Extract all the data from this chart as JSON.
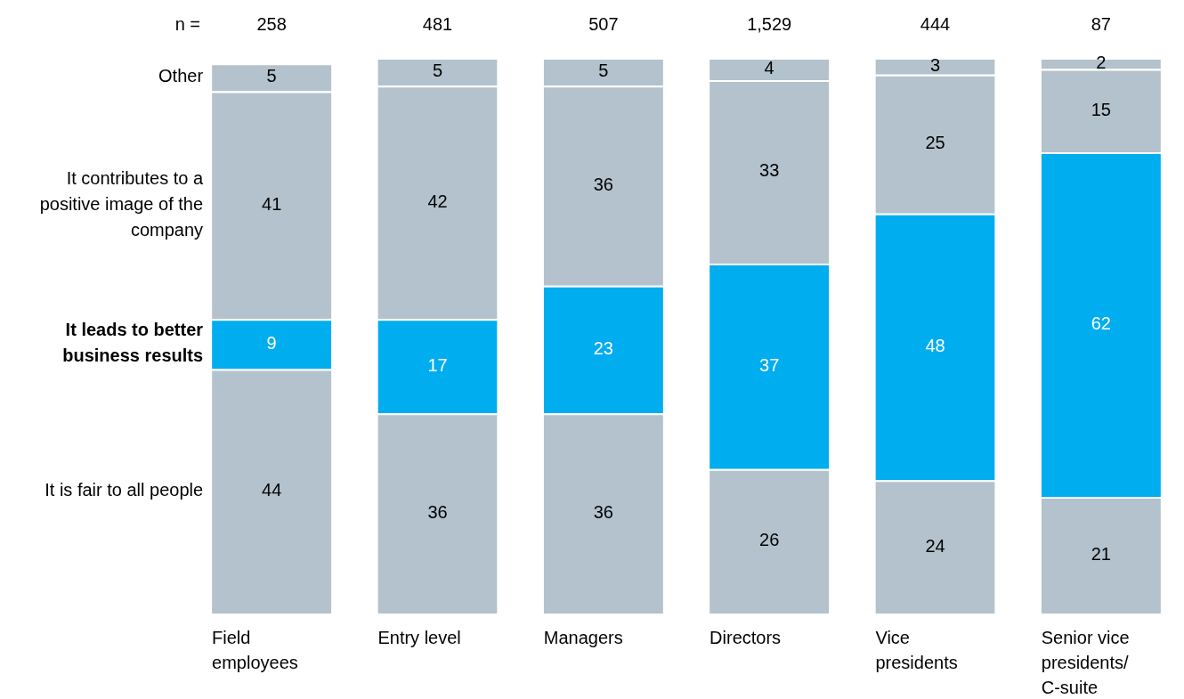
{
  "chart_data": {
    "type": "bar",
    "stacked": true,
    "data_labels": true,
    "legend": false,
    "grid": false,
    "ylim": [
      0,
      100
    ],
    "categories": [
      "Field employees",
      "Entry level",
      "Managers",
      "Directors",
      "Vice presidents",
      "Senior vice presidents/ C-suite"
    ],
    "annotations": [
      "n =",
      "258",
      "481",
      "507",
      "1,529",
      "444",
      "87"
    ],
    "series": [
      {
        "name": "It is fair to all people",
        "color": "#b3c2cc",
        "values": [
          44,
          36,
          36,
          26,
          24,
          21
        ]
      },
      {
        "name": "It leads to better business results",
        "color": "#00adef",
        "values": [
          9,
          17,
          23,
          37,
          48,
          62
        ]
      },
      {
        "name": "It contributes to a positive image of the company",
        "color": "#b3c2cc",
        "values": [
          41,
          42,
          36,
          33,
          25,
          15
        ]
      },
      {
        "name": "Other",
        "color": "#b3c2cc",
        "values": [
          5,
          5,
          5,
          4,
          3,
          2
        ]
      }
    ]
  }
}
